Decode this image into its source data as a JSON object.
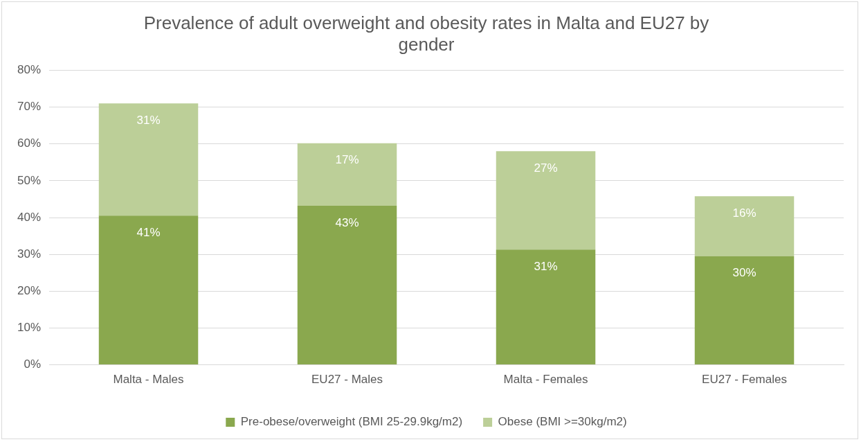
{
  "chart_data": {
    "type": "bar",
    "title": "Prevalence of adult overweight and obesity rates in Malta and EU27 by gender",
    "categories": [
      "Malta - Males",
      "EU27 - Males",
      "Malta - Females",
      "EU27 - Females"
    ],
    "series": [
      {
        "name": "Pre-obese/overweight (BMI 25-29.9kg/m2)",
        "color": "#8aa84e",
        "values": [
          40.5,
          43.2,
          31.3,
          29.5
        ],
        "value_labels": [
          "41%",
          "43%",
          "31%",
          "30%"
        ]
      },
      {
        "name": "Obese (BMI >=30kg/m2)",
        "color": "#bccf98",
        "values": [
          30.5,
          17,
          26.7,
          16.3
        ],
        "value_labels": [
          "31%",
          "17%",
          "27%",
          "16%"
        ]
      }
    ],
    "stacked": true,
    "ylim": [
      0,
      80
    ],
    "yticks": [
      {
        "value": 0,
        "label": "0%"
      },
      {
        "value": 10,
        "label": "10%"
      },
      {
        "value": 20,
        "label": "20%"
      },
      {
        "value": 30,
        "label": "30%"
      },
      {
        "value": 40,
        "label": "40%"
      },
      {
        "value": 50,
        "label": "50%"
      },
      {
        "value": 60,
        "label": "60%"
      },
      {
        "value": 70,
        "label": "70%"
      },
      {
        "value": 80,
        "label": "80%"
      }
    ],
    "grid": "y",
    "legend": "bottom"
  }
}
